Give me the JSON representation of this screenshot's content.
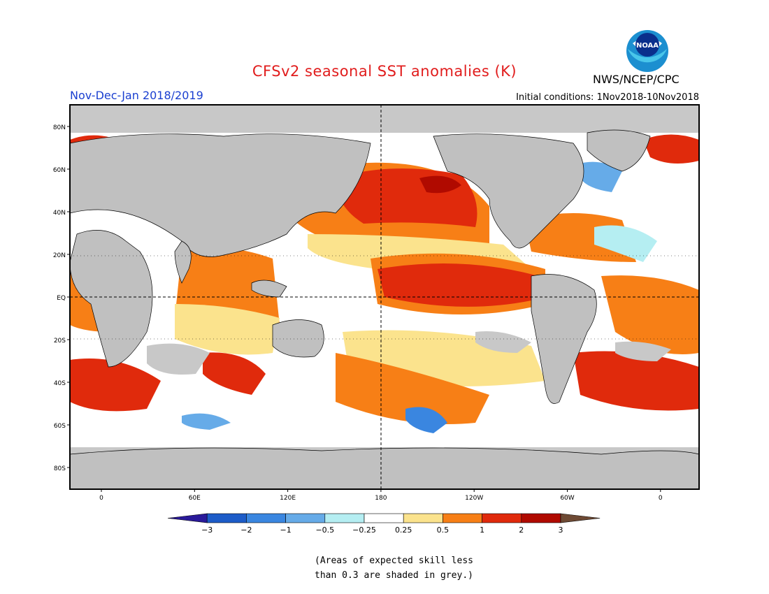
{
  "header": {
    "title": "CFSv2 seasonal SST anomalies (K)",
    "season": "Nov-Dec-Jan 2018/2019",
    "initial_conditions": "Initial conditions: 1Nov2018-10Nov2018",
    "agency": "NWS/NCEP/CPC",
    "logo_text": "NOAA"
  },
  "map": {
    "lat_labels": [
      "80N",
      "60N",
      "40N",
      "20N",
      "EQ",
      "20S",
      "40S",
      "60S",
      "80S"
    ],
    "lon_labels": [
      "0",
      "60E",
      "120E",
      "180",
      "120W",
      "60W",
      "0"
    ],
    "grey_color": "#c8c8c8",
    "land_color": "#c0c0c0"
  },
  "colorbar": {
    "ticks": [
      "-3",
      "-2",
      "-1",
      "-0.5",
      "-0.25",
      "0.25",
      "0.5",
      "1",
      "2",
      "3"
    ],
    "colors": [
      "#2a1a9a",
      "#1d5cc8",
      "#3a86e0",
      "#66abe8",
      "#b5eef2",
      "#ffffff",
      "#fbe38d",
      "#f77f16",
      "#e02a0c",
      "#b00a00",
      "#6e4a34"
    ]
  },
  "footnote": {
    "line1": "(Areas of expected skill less",
    "line2": "than 0.3 are shaded in grey.)"
  }
}
